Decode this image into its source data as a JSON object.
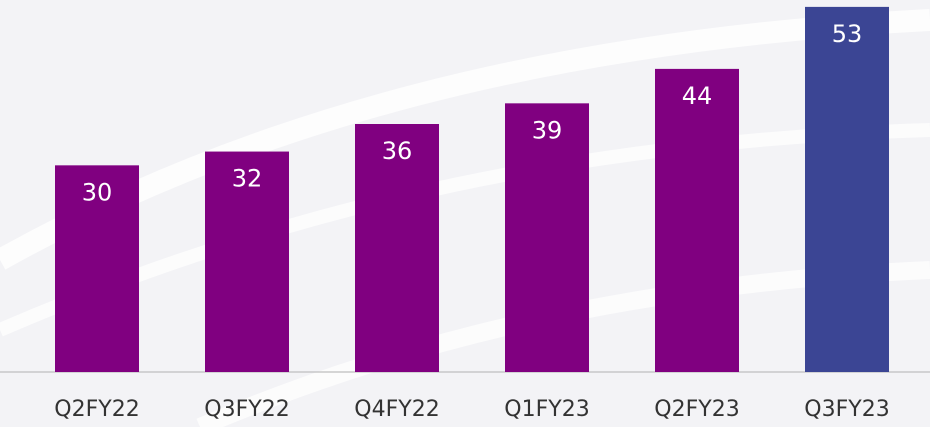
{
  "chart_data": {
    "type": "bar",
    "categories": [
      "Q2FY22",
      "Q3FY22",
      "Q4FY22",
      "Q1FY23",
      "Q2FY23",
      "Q3FY23"
    ],
    "values": [
      30,
      32,
      36,
      39,
      44,
      53
    ],
    "colors": [
      "#800080",
      "#800080",
      "#800080",
      "#800080",
      "#800080",
      "#3b4594"
    ],
    "ylim": [
      0,
      54
    ]
  }
}
